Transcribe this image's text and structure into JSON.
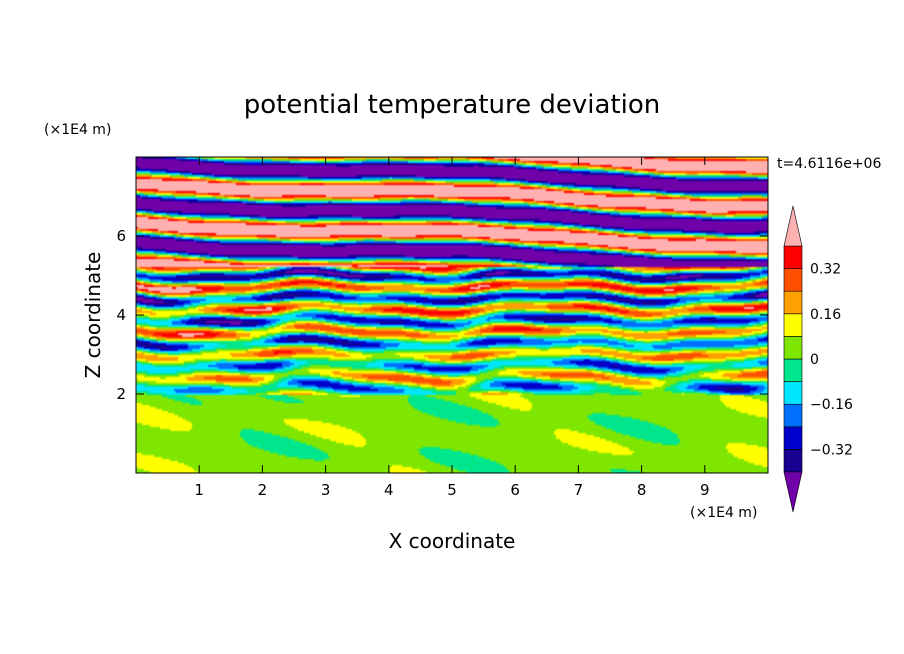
{
  "chart_data": {
    "type": "heatmap",
    "title": "potential temperature deviation",
    "xlabel": "X coordinate",
    "ylabel": "Z coordinate",
    "x_unit": "(×1E4 m)",
    "y_unit": "(×1E4 m)",
    "time_label": "t=4.6116e+06",
    "xlim": [
      0,
      10
    ],
    "ylim": [
      0,
      8
    ],
    "x_ticks": [
      1,
      2,
      3,
      4,
      5,
      6,
      7,
      8,
      9
    ],
    "y_ticks": [
      2,
      4,
      6
    ],
    "colorbar": {
      "levels": [
        -0.4,
        -0.32,
        -0.24,
        -0.16,
        -0.08,
        0,
        0.08,
        0.16,
        0.24,
        0.32,
        0.4
      ],
      "tick_labels": [
        "0.32",
        "0.16",
        "0",
        "−0.16",
        "−0.32"
      ],
      "tick_values": [
        0.32,
        0.16,
        0,
        -0.16,
        -0.32
      ],
      "colors": [
        "#7000a8",
        "#1a0090",
        "#0000cc",
        "#0070ff",
        "#00e6ff",
        "#00e68c",
        "#7ee600",
        "#ffff00",
        "#ffa000",
        "#ff5000",
        "#ff0000",
        "#ffb0b0"
      ],
      "extend": "both"
    },
    "regions": {
      "lower_layer_z": [
        0,
        2
      ],
      "lower_layer_dominant": [
        0,
        0.08
      ],
      "turbulent_layer_z": [
        2,
        5.2
      ],
      "upper_layer_z": [
        5.2,
        8
      ],
      "upper_layer_dominant": [
        "<-0.4",
        ">0.4"
      ]
    }
  }
}
